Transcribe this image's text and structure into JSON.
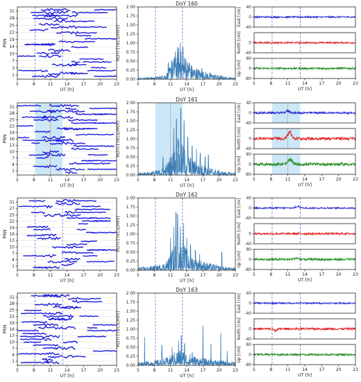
{
  "figure": {
    "colors": {
      "prn_tracks": "#1a1adb",
      "roti": "#3b7db5",
      "east": "#1f1fd0",
      "north": "#e01919",
      "up": "#1a8a1a",
      "event_line": "#6a6ae0",
      "shading": "#cce7f7",
      "dotted_line": "#c0392b"
    }
  },
  "chart_data": [
    {
      "type": "scatter",
      "day": "DoY 160",
      "panel": "prn",
      "ylabel": "PRN",
      "xlabel": "UT [h]",
      "xticks": [
        "5",
        "8",
        "11",
        "14",
        "17",
        "20",
        "23"
      ],
      "yticks": [
        "1",
        "3",
        "7",
        "10",
        "14",
        "19",
        "22",
        "25",
        "28",
        "31"
      ],
      "xlim": [
        5,
        23
      ],
      "event_lines": [
        8.2,
        13.2
      ]
    },
    {
      "type": "line",
      "day": "DoY 160",
      "panel": "roti",
      "title": "DoY 160",
      "ylabel": "ROTI [TECu/min]",
      "xlabel": "UT [h]",
      "xticks": [
        "5",
        "8",
        "11",
        "14",
        "17",
        "20",
        "23"
      ],
      "yticks": [
        "0.00",
        "0.25",
        "0.50",
        "0.75",
        "1.00",
        "1.25",
        "1.50",
        "1.75",
        "2.00"
      ],
      "xlim": [
        5,
        23
      ],
      "ylim": [
        0,
        2
      ],
      "event_lines": [
        8.2,
        13.2
      ],
      "envelope": {
        "x": [
          5,
          6,
          7,
          8,
          9,
          10,
          10.5,
          11,
          11.5,
          12,
          12.5,
          13,
          13.5,
          14,
          15,
          16,
          17,
          18,
          19,
          20,
          21,
          22,
          23
        ],
        "y": [
          0.03,
          0.03,
          0.04,
          0.04,
          0.06,
          0.1,
          0.15,
          0.25,
          0.35,
          0.55,
          0.6,
          0.5,
          0.45,
          0.35,
          0.25,
          0.2,
          0.15,
          0.12,
          0.1,
          0.07,
          0.05,
          0.04,
          0.03
        ]
      },
      "peaks": [
        [
          10.6,
          0.45
        ],
        [
          11.2,
          0.52
        ],
        [
          11.8,
          0.6
        ],
        [
          12.3,
          0.68
        ],
        [
          12.8,
          1.0
        ],
        [
          13.3,
          0.88
        ],
        [
          13.8,
          0.55
        ],
        [
          14.5,
          0.45
        ],
        [
          16.8,
          0.3
        ]
      ]
    },
    {
      "type": "line",
      "day": "DoY 160",
      "panel": "enu",
      "xlabel": "UT [h]",
      "xticks": [
        "5",
        "8",
        "11",
        "14",
        "17",
        "20",
        "23"
      ],
      "xlim": [
        5,
        23
      ],
      "event_lines": [
        8.2,
        13.2
      ],
      "series": [
        {
          "name": "East [cm]",
          "yticks": [
            "-40",
            "0",
            "40"
          ],
          "ylim": [
            -40,
            40
          ],
          "amp": 3
        },
        {
          "name": "North [cm]",
          "yticks": [
            "-40",
            "0"
          ],
          "ylim": [
            -40,
            40
          ],
          "amp": 3
        },
        {
          "name": "Up [cm]",
          "yticks": [
            "-80",
            "0",
            "80"
          ],
          "ylim": [
            -80,
            80
          ],
          "amp": 8
        }
      ]
    },
    {
      "type": "scatter",
      "day": "DoY 161",
      "panel": "prn",
      "ylabel": "PRN",
      "xlabel": "UT [h]",
      "xticks": [
        "5",
        "8",
        "11",
        "14",
        "17",
        "20",
        "23"
      ],
      "yticks": [
        "1",
        "4",
        "7",
        "10",
        "13",
        "16",
        "19",
        "22",
        "25",
        "28",
        "31"
      ],
      "xlim": [
        5,
        23
      ],
      "shaded": [
        8.2,
        13.2
      ],
      "dotted": 11
    },
    {
      "type": "line",
      "day": "DoY 161",
      "panel": "roti",
      "title": "DoY 161",
      "ylabel": "ROTI [TECu/min]",
      "xlabel": "UT [h]",
      "xticks": [
        "5",
        "8",
        "11",
        "14",
        "17",
        "20",
        "23"
      ],
      "yticks": [
        "0.00",
        "0.25",
        "0.50",
        "0.75",
        "1.00",
        "1.25",
        "1.50",
        "1.75",
        "2.00"
      ],
      "xlim": [
        5,
        23
      ],
      "ylim": [
        0,
        2
      ],
      "shaded": [
        8.2,
        13.2
      ],
      "dotted": 11,
      "envelope": {
        "x": [
          5,
          6,
          7,
          8,
          9,
          10,
          10.5,
          11,
          11.5,
          12,
          12.5,
          13,
          13.5,
          14,
          15,
          16,
          17,
          18,
          19,
          20,
          21,
          22,
          23
        ],
        "y": [
          0.05,
          0.05,
          0.06,
          0.08,
          0.1,
          0.15,
          0.25,
          0.35,
          0.45,
          0.55,
          0.6,
          0.55,
          0.5,
          0.4,
          0.3,
          0.22,
          0.18,
          0.14,
          0.12,
          0.08,
          0.06,
          0.05,
          0.05
        ]
      },
      "peaks": [
        [
          9.6,
          0.5
        ],
        [
          11.6,
          1.3
        ],
        [
          12.1,
          1.55
        ],
        [
          12.4,
          1.0
        ],
        [
          12.9,
          1.85
        ],
        [
          13.5,
          1.5
        ],
        [
          14.2,
          1.05
        ],
        [
          15.0,
          0.8
        ],
        [
          15.8,
          0.72
        ],
        [
          16.5,
          0.6
        ],
        [
          17.4,
          0.5
        ],
        [
          18.0,
          0.55
        ]
      ]
    },
    {
      "type": "line",
      "day": "DoY 161",
      "panel": "enu",
      "xlabel": "UT [h]",
      "xticks": [
        "5",
        "8",
        "11",
        "14",
        "17",
        "20",
        "23"
      ],
      "xlim": [
        5,
        23
      ],
      "shaded": [
        8.2,
        13.2
      ],
      "dotted": 11,
      "series": [
        {
          "name": "East [cm]",
          "yticks": [
            "-40",
            "0",
            "40"
          ],
          "ylim": [
            -40,
            40
          ],
          "amp": 4,
          "bump": [
            11,
            8
          ]
        },
        {
          "name": "North [cm]",
          "yticks": [
            "-40",
            "0"
          ],
          "ylim": [
            -40,
            40
          ],
          "amp": 6,
          "bump": [
            11.3,
            28
          ]
        },
        {
          "name": "Up [cm]",
          "yticks": [
            "-80",
            "0",
            "80"
          ],
          "ylim": [
            -80,
            80
          ],
          "amp": 12,
          "bump": [
            11.4,
            45
          ]
        }
      ]
    },
    {
      "type": "scatter",
      "day": "DoY 162",
      "panel": "prn",
      "ylabel": "PRN",
      "xlabel": "UT [h]",
      "xticks": [
        "5",
        "8",
        "11",
        "14",
        "17",
        "20",
        "23"
      ],
      "yticks": [
        "1",
        "4",
        "7",
        "10",
        "13",
        "16",
        "19",
        "22",
        "25",
        "27",
        "31"
      ],
      "xlim": [
        5,
        23
      ],
      "event_lines": [
        8.2,
        13.2
      ]
    },
    {
      "type": "line",
      "day": "DoY 162",
      "panel": "roti",
      "title": "DoY 162",
      "ylabel": "ROTI [TECu/min]",
      "xlabel": "UT [h]",
      "xticks": [
        "5",
        "8",
        "11",
        "14",
        "17",
        "20",
        "23"
      ],
      "yticks": [
        "0.00",
        "0.25",
        "0.50",
        "0.75",
        "1.00",
        "1.25",
        "1.50",
        "1.75",
        "2.00"
      ],
      "xlim": [
        5,
        23
      ],
      "ylim": [
        0,
        2
      ],
      "event_lines": [
        8.2,
        13.2
      ],
      "envelope": {
        "x": [
          5,
          6,
          7,
          8,
          9,
          10,
          10.5,
          11,
          11.5,
          12,
          12.5,
          13,
          13.5,
          14,
          15,
          16,
          17,
          18,
          19,
          20,
          21,
          22,
          23
        ],
        "y": [
          0.05,
          0.06,
          0.07,
          0.08,
          0.1,
          0.14,
          0.2,
          0.3,
          0.4,
          0.5,
          0.55,
          0.5,
          0.45,
          0.38,
          0.28,
          0.2,
          0.16,
          0.13,
          0.11,
          0.08,
          0.06,
          0.05,
          0.05
        ]
      },
      "peaks": [
        [
          11.0,
          0.9
        ],
        [
          11.6,
          1.2
        ],
        [
          12.0,
          1.6
        ],
        [
          12.3,
          1.55
        ],
        [
          12.8,
          1.2
        ],
        [
          13.4,
          1.3
        ],
        [
          14.0,
          0.9
        ],
        [
          14.7,
          0.7
        ],
        [
          15.6,
          0.55
        ],
        [
          16.4,
          0.45
        ],
        [
          20.5,
          0.5
        ]
      ]
    },
    {
      "type": "line",
      "day": "DoY 162",
      "panel": "enu",
      "xlabel": "UT [h]",
      "xticks": [
        "5",
        "8",
        "11",
        "14",
        "17",
        "20",
        "23"
      ],
      "xlim": [
        5,
        23
      ],
      "event_lines": [
        8.2,
        13.2
      ],
      "series": [
        {
          "name": "East [cm]",
          "yticks": [
            "-40",
            "0",
            "40"
          ],
          "ylim": [
            -40,
            40
          ],
          "amp": 3,
          "bump": [
            12.8,
            7
          ]
        },
        {
          "name": "North [cm]",
          "yticks": [
            "-40",
            "0"
          ],
          "ylim": [
            -40,
            40
          ],
          "amp": 4
        },
        {
          "name": "Up [cm]",
          "yticks": [
            "-80",
            "0",
            "80"
          ],
          "ylim": [
            -80,
            80
          ],
          "amp": 9,
          "bump": [
            12.5,
            12
          ]
        }
      ]
    },
    {
      "type": "scatter",
      "day": "DoY 163",
      "panel": "prn",
      "ylabel": "PRN",
      "xlabel": "UT [h]",
      "xticks": [
        "5",
        "8",
        "11",
        "14",
        "17",
        "20",
        "23"
      ],
      "yticks": [
        "1",
        "4",
        "7",
        "10",
        "13",
        "16",
        "19",
        "22",
        "25",
        "28",
        "31"
      ],
      "xlim": [
        5,
        23
      ],
      "event_lines": [
        8.2,
        13.2
      ]
    },
    {
      "type": "line",
      "day": "DoY 163",
      "panel": "roti",
      "title": "DoY 163",
      "ylabel": "ROTI [TECu/min]",
      "xlabel": "UT [h]",
      "xticks": [
        "5",
        "8",
        "11",
        "14",
        "17",
        "20",
        "23"
      ],
      "yticks": [
        "0.00",
        "0.25",
        "0.50",
        "0.75",
        "1.00",
        "1.25",
        "1.50",
        "1.75",
        "2.00"
      ],
      "xlim": [
        5,
        23
      ],
      "ylim": [
        0,
        2
      ],
      "event_lines": [
        8.2,
        13.2
      ],
      "envelope": {
        "x": [
          5,
          6,
          7,
          8,
          9,
          10,
          10.5,
          11,
          11.5,
          12,
          12.5,
          13,
          13.5,
          14,
          15,
          16,
          17,
          18,
          19,
          20,
          21,
          22,
          23
        ],
        "y": [
          0.06,
          0.07,
          0.08,
          0.09,
          0.1,
          0.12,
          0.15,
          0.18,
          0.22,
          0.25,
          0.28,
          0.27,
          0.25,
          0.22,
          0.18,
          0.15,
          0.13,
          0.11,
          0.1,
          0.09,
          0.08,
          0.07,
          0.06
        ]
      },
      "peaks": [
        [
          6.2,
          0.78
        ],
        [
          9.4,
          0.55
        ],
        [
          11.3,
          0.5
        ],
        [
          12.5,
          0.68
        ],
        [
          13.0,
          0.82
        ],
        [
          13.6,
          0.6
        ],
        [
          15.0,
          0.35
        ],
        [
          17.0,
          1.1
        ],
        [
          18.5,
          0.6
        ],
        [
          20.3,
          0.9
        ],
        [
          21.5,
          0.4
        ]
      ]
    },
    {
      "type": "line",
      "day": "DoY 163",
      "panel": "enu",
      "xlabel": "UT [h]",
      "xticks": [
        "5",
        "8",
        "11",
        "14",
        "17",
        "20",
        "23"
      ],
      "xlim": [
        5,
        23
      ],
      "event_lines": [
        8.2,
        13.2
      ],
      "series": [
        {
          "name": "East [cm]",
          "yticks": [
            "-40",
            "0",
            "40"
          ],
          "ylim": [
            -40,
            40
          ],
          "amp": 3
        },
        {
          "name": "North [cm]",
          "yticks": [
            "-40",
            "0"
          ],
          "ylim": [
            -40,
            40
          ],
          "amp": 4,
          "bump": [
            8.8,
            -6
          ]
        },
        {
          "name": "Up [cm]",
          "yticks": [
            "-80",
            "0",
            "80"
          ],
          "ylim": [
            -80,
            80
          ],
          "amp": 8
        }
      ]
    }
  ]
}
